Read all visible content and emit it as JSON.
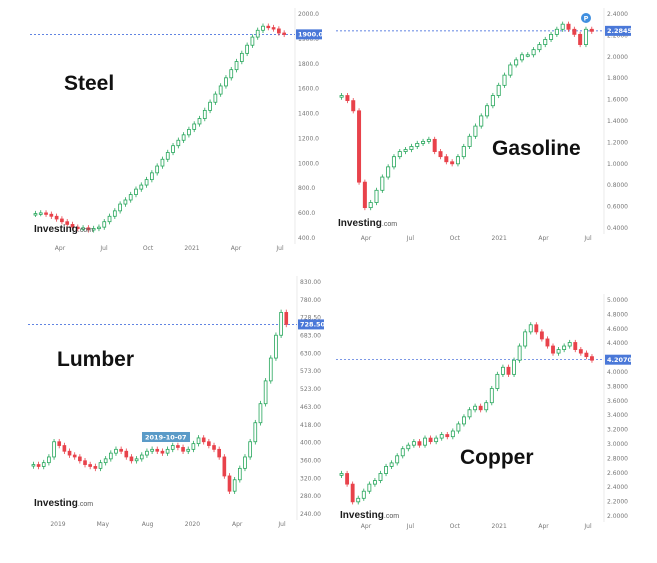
{
  "chart_data": [
    {
      "type": "candlestick",
      "title": "Steel",
      "source_logo": "Investing",
      "source_logo_suffix": ".com",
      "xticks": [
        "Apr",
        "Jul",
        "Oct",
        "2021",
        "Apr",
        "Jul"
      ],
      "yticks": [
        "2000.0",
        "1900.0",
        "1800.0",
        "1600.0",
        "1400.0",
        "1200.0",
        "1000.0",
        "800.0",
        "600.0",
        "400.0"
      ],
      "ylim": [
        400,
        2050
      ],
      "current_price": 1900,
      "current_label": "1900.0",
      "series_close": [
        580,
        585,
        575,
        560,
        540,
        520,
        500,
        480,
        470,
        475,
        460,
        470,
        480,
        520,
        560,
        600,
        650,
        680,
        720,
        760,
        790,
        830,
        880,
        930,
        980,
        1030,
        1080,
        1120,
        1160,
        1200,
        1240,
        1280,
        1340,
        1400,
        1460,
        1520,
        1580,
        1640,
        1700,
        1760,
        1820,
        1880,
        1930,
        1960,
        1950,
        1940,
        1910,
        1900
      ],
      "colors": {
        "up": "#26a65b",
        "down": "#e8424b",
        "price_line": "#2d5bd8",
        "badge": "#4a78d8"
      }
    },
    {
      "type": "candlestick",
      "title": "Gasoline",
      "source_logo": "Investing",
      "source_logo_suffix": ".com",
      "xticks": [
        "Apr",
        "Jul",
        "Oct",
        "2021",
        "Apr",
        "Jul"
      ],
      "yticks": [
        "2.4000",
        "2.2000",
        "2.0000",
        "1.8000",
        "1.6000",
        "1.4000",
        "1.2000",
        "1.0000",
        "0.8000",
        "0.6000",
        "0.4000"
      ],
      "ylim": [
        0.35,
        2.45
      ],
      "current_price": 2.2845,
      "current_label": "2.2845",
      "marker_letter": "P",
      "series_close": [
        1.65,
        1.6,
        1.5,
        0.8,
        0.55,
        0.6,
        0.72,
        0.85,
        0.95,
        1.05,
        1.1,
        1.12,
        1.15,
        1.18,
        1.2,
        1.22,
        1.1,
        1.05,
        1.0,
        0.98,
        1.05,
        1.15,
        1.25,
        1.35,
        1.45,
        1.55,
        1.65,
        1.75,
        1.85,
        1.95,
        2.0,
        2.05,
        2.05,
        2.1,
        2.15,
        2.2,
        2.25,
        2.3,
        2.35,
        2.3,
        2.25,
        2.15,
        2.3,
        2.28
      ],
      "colors": {
        "up": "#26a65b",
        "down": "#e8424b",
        "price_line": "#2d5bd8",
        "badge": "#4a78d8",
        "marker": "#3f8fe0"
      }
    },
    {
      "type": "candlestick",
      "title": "Lumber",
      "source_logo": "Investing",
      "source_logo_suffix": ".com",
      "xticks": [
        "2019",
        "May",
        "Aug",
        "2020",
        "Apr",
        "Jul"
      ],
      "yticks": [
        "830.00",
        "780.00",
        "728.50",
        "683.00",
        "630.00",
        "573.00",
        "523.00",
        "463.00",
        "418.00",
        "400.00",
        "360.00",
        "320.00",
        "280.00",
        "240.00"
      ],
      "ylim": [
        230,
        840
      ],
      "current_price": 728.5,
      "current_label": "728.50",
      "tooltip_date": "2019-10-07",
      "series_close": [
        360,
        355,
        365,
        380,
        420,
        410,
        395,
        385,
        380,
        370,
        360,
        355,
        350,
        365,
        375,
        390,
        400,
        395,
        380,
        370,
        375,
        385,
        395,
        400,
        395,
        390,
        400,
        410,
        405,
        395,
        400,
        415,
        430,
        420,
        410,
        400,
        380,
        330,
        290,
        320,
        350,
        380,
        420,
        470,
        520,
        580,
        640,
        700,
        760,
        728.5
      ],
      "colors": {
        "up": "#26a65b",
        "down": "#e8424b",
        "price_line": "#2d5bd8",
        "badge": "#4a78d8",
        "tooltip": "#5b9bc8"
      }
    },
    {
      "type": "candlestick",
      "title": "Copper",
      "source_logo": "Investing",
      "source_logo_suffix": ".com",
      "xticks": [
        "Apr",
        "Jul",
        "Oct",
        "2021",
        "Apr",
        "Jul"
      ],
      "yticks": [
        "5.0000",
        "4.8000",
        "4.6000",
        "4.4000",
        "4.2000",
        "4.0000",
        "3.8000",
        "3.6000",
        "3.4000",
        "3.2000",
        "3.0000",
        "2.8000",
        "2.6000",
        "2.4000",
        "2.2000",
        "2.0000"
      ],
      "ylim": [
        2.0,
        5.05
      ],
      "current_price": 4.207,
      "current_label": "4.2070",
      "series_close": [
        2.6,
        2.45,
        2.2,
        2.25,
        2.35,
        2.45,
        2.5,
        2.6,
        2.7,
        2.75,
        2.85,
        2.95,
        3.0,
        3.05,
        3.0,
        3.1,
        3.05,
        3.1,
        3.15,
        3.12,
        3.2,
        3.3,
        3.4,
        3.5,
        3.55,
        3.5,
        3.6,
        3.8,
        4.0,
        4.1,
        4.0,
        4.2,
        4.4,
        4.6,
        4.7,
        4.6,
        4.5,
        4.4,
        4.3,
        4.35,
        4.4,
        4.45,
        4.35,
        4.3,
        4.25,
        4.2
      ],
      "colors": {
        "up": "#26a65b",
        "down": "#e8424b",
        "price_line": "#2d5bd8",
        "badge": "#4a78d8"
      }
    }
  ]
}
